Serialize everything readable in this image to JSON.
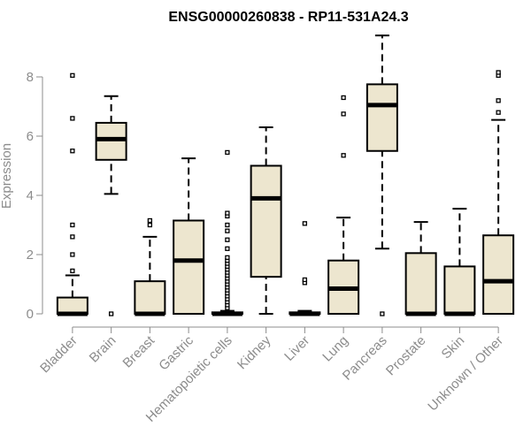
{
  "chart_data": {
    "type": "box",
    "title": "ENSG00000260838 - RP11-531A24.3",
    "xlabel": "",
    "ylabel": "Expression",
    "ylim": [
      0,
      9.3
    ],
    "yticks": [
      0,
      2,
      4,
      6,
      8
    ],
    "grid": false,
    "legend": "none",
    "colors": {
      "box_fill": "#ede6cf",
      "stroke": "#000000",
      "axis_text": "#8c8c8c"
    },
    "categories": [
      "Bladder",
      "Brain",
      "Breast",
      "Gastric",
      "Hematopoietic cells",
      "Kidney",
      "Liver",
      "Lung",
      "Pancreas",
      "Prostate",
      "Skin",
      "Unknown / Other"
    ],
    "boxes": [
      {
        "min": 0,
        "q1": 0,
        "median": 0,
        "q3": 0.55,
        "max": 1.3,
        "outliers": [
          1.45,
          2.0,
          2.6,
          3.0,
          5.5,
          6.6,
          8.05
        ]
      },
      {
        "min": 4.05,
        "q1": 5.2,
        "median": 5.9,
        "q3": 6.45,
        "max": 7.35,
        "outliers": [
          0
        ]
      },
      {
        "min": 0,
        "q1": 0,
        "median": 0,
        "q3": 1.1,
        "max": 2.6,
        "outliers": [
          3.0,
          3.15
        ]
      },
      {
        "min": 0,
        "q1": 0,
        "median": 1.8,
        "q3": 3.15,
        "max": 5.25,
        "outliers": []
      },
      {
        "min": 0,
        "q1": 0,
        "median": 0,
        "q3": 0.05,
        "max": 0.1,
        "outliers": [
          0.2,
          0.3,
          0.4,
          0.5,
          0.6,
          0.7,
          0.8,
          0.9,
          1.0,
          1.1,
          1.2,
          1.3,
          1.4,
          1.5,
          1.6,
          1.7,
          1.8,
          1.9,
          2.2,
          2.5,
          2.8,
          3.0,
          3.3,
          3.4,
          5.45
        ]
      },
      {
        "min": 0,
        "q1": 1.25,
        "median": 3.9,
        "q3": 5.0,
        "max": 6.3,
        "outliers": []
      },
      {
        "min": 0,
        "q1": 0,
        "median": 0,
        "q3": 0.05,
        "max": 0.1,
        "outliers": [
          1.05,
          1.15,
          3.05
        ]
      },
      {
        "min": 0,
        "q1": 0,
        "median": 0.85,
        "q3": 1.8,
        "max": 3.25,
        "outliers": [
          5.35,
          6.75,
          7.3
        ]
      },
      {
        "min": 2.2,
        "q1": 5.5,
        "median": 7.05,
        "q3": 7.75,
        "max": 9.4,
        "outliers": [
          0
        ]
      },
      {
        "min": 0,
        "q1": 0,
        "median": 0,
        "q3": 2.05,
        "max": 3.1,
        "outliers": []
      },
      {
        "min": 0,
        "q1": 0,
        "median": 0,
        "q3": 1.6,
        "max": 3.55,
        "outliers": []
      },
      {
        "min": 0,
        "q1": 0,
        "median": 1.1,
        "q3": 2.65,
        "max": 6.55,
        "outliers": [
          6.8,
          7.2,
          8.05,
          8.15
        ]
      }
    ]
  }
}
